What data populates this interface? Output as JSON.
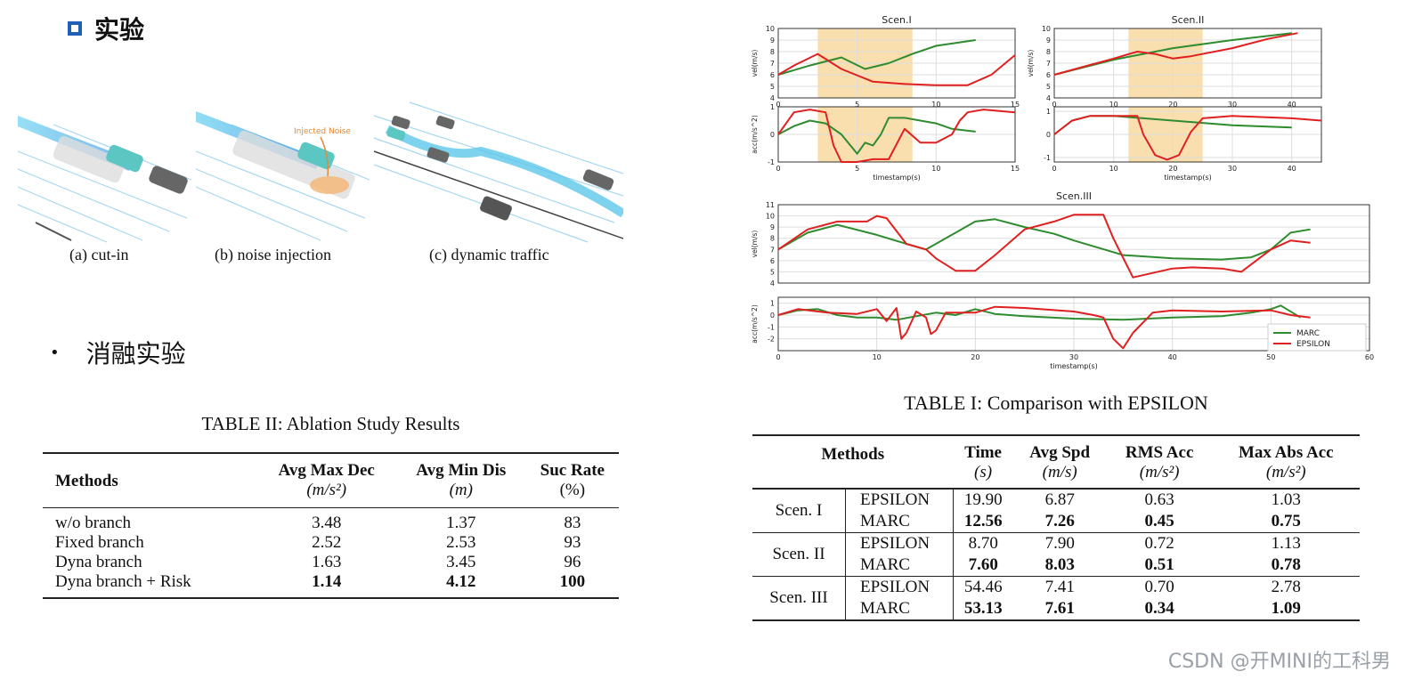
{
  "heading": "实验",
  "bullet": "消融实验",
  "figures": {
    "captions": [
      "(a) cut-in",
      "(b) noise injection",
      "(c) dynamic traffic"
    ],
    "annotation": "Injected Noise"
  },
  "table2": {
    "title": "TABLE II: Ablation Study Results",
    "headers": [
      {
        "label": "Methods",
        "unit": ""
      },
      {
        "label": "Avg Max Dec",
        "unit": "(m/s²)"
      },
      {
        "label": "Avg Min Dis",
        "unit": "(m)"
      },
      {
        "label": "Suc Rate",
        "unit": "(%)"
      }
    ],
    "rows": [
      {
        "method": "w/o branch",
        "dec": "3.48",
        "dis": "1.37",
        "suc": "83"
      },
      {
        "method": "Fixed branch",
        "dec": "2.52",
        "dis": "2.53",
        "suc": "93"
      },
      {
        "method": "Dyna branch",
        "dec": "1.63",
        "dis": "3.45",
        "suc": "96"
      },
      {
        "method": "Dyna branch + Risk",
        "dec": "1.14",
        "dis": "4.12",
        "suc": "100"
      }
    ]
  },
  "table1": {
    "title": "TABLE I: Comparison with EPSILON",
    "headers": [
      {
        "label": "Methods",
        "unit": ""
      },
      {
        "label": "Time",
        "unit": "(s)"
      },
      {
        "label": "Avg Spd",
        "unit": "(m/s)"
      },
      {
        "label": "RMS Acc",
        "unit": "(m/s²)"
      },
      {
        "label": "Max Abs Acc",
        "unit": "(m/s²)"
      }
    ],
    "groups": [
      {
        "scen": "Scen. I",
        "rows": [
          {
            "method": "EPSILON",
            "time": "19.90",
            "spd": "6.87",
            "rms": "0.63",
            "max": "1.03"
          },
          {
            "method": "MARC",
            "time": "12.56",
            "spd": "7.26",
            "rms": "0.45",
            "max": "0.75"
          }
        ]
      },
      {
        "scen": "Scen. II",
        "rows": [
          {
            "method": "EPSILON",
            "time": "8.70",
            "spd": "7.90",
            "rms": "0.72",
            "max": "1.13"
          },
          {
            "method": "MARC",
            "time": "7.60",
            "spd": "8.03",
            "rms": "0.51",
            "max": "0.78"
          }
        ]
      },
      {
        "scen": "Scen. III",
        "rows": [
          {
            "method": "EPSILON",
            "time": "54.46",
            "spd": "7.41",
            "rms": "0.70",
            "max": "2.78"
          },
          {
            "method": "MARC",
            "time": "53.13",
            "spd": "7.61",
            "rms": "0.34",
            "max": "1.09"
          }
        ]
      }
    ]
  },
  "chart_data": [
    {
      "type": "line",
      "title": "Scen.I",
      "xlabel": "",
      "ylabel": "vel(m/s)",
      "xlim": [
        0,
        15
      ],
      "ylim": [
        4,
        10
      ],
      "xticks": [
        "0",
        "5",
        "10",
        "15"
      ],
      "yticks": [
        "4",
        "5",
        "6",
        "7",
        "8",
        "9",
        "10"
      ],
      "shaded": [
        2.5,
        8.5
      ],
      "series": [
        {
          "name": "MARC",
          "color": "#2e8b2e",
          "x": [
            0,
            2,
            4,
            5.5,
            7,
            8.5,
            10,
            12.5
          ],
          "y": [
            6,
            6.8,
            7.5,
            6.5,
            7,
            7.8,
            8.5,
            9
          ]
        },
        {
          "name": "EPSILON",
          "color": "#e02020",
          "x": [
            0,
            1,
            2.5,
            4,
            6,
            8,
            10,
            12,
            13.5,
            15
          ],
          "y": [
            6,
            6.8,
            7.8,
            6.5,
            5.4,
            5.2,
            5.1,
            5.1,
            6,
            7.7
          ]
        }
      ]
    },
    {
      "type": "line",
      "title": "",
      "xlabel": "timestamp(s)",
      "ylabel": "acc(m/s^2)",
      "xlim": [
        0,
        15
      ],
      "ylim": [
        -1,
        1
      ],
      "xticks": [
        "0",
        "5",
        "10",
        "15"
      ],
      "yticks": [
        "-1",
        "0",
        "1"
      ],
      "shaded": [
        2.5,
        8.5
      ],
      "series": [
        {
          "name": "MARC",
          "color": "#2e8b2e",
          "x": [
            0,
            1,
            2,
            3,
            4,
            5,
            5.5,
            6,
            6.5,
            7,
            8,
            9,
            10,
            11,
            12.5
          ],
          "y": [
            0,
            0.3,
            0.5,
            0.4,
            0,
            -0.7,
            -0.3,
            -0.4,
            0,
            0.6,
            0.6,
            0.5,
            0.4,
            0.2,
            0.1
          ]
        },
        {
          "name": "EPSILON",
          "color": "#e02020",
          "x": [
            0,
            1,
            2,
            3,
            3.5,
            4,
            5,
            6,
            7,
            8,
            9,
            10,
            11,
            11.5,
            12,
            13,
            15
          ],
          "y": [
            0,
            0.8,
            0.9,
            0.8,
            -0.4,
            -1,
            -1,
            -0.9,
            -0.9,
            0.2,
            -0.3,
            -0.3,
            0,
            0.5,
            0.8,
            0.9,
            0.8
          ]
        }
      ]
    },
    {
      "type": "line",
      "title": "Scen.II",
      "xlabel": "",
      "ylabel": "vel(m/s)",
      "xlim": [
        0,
        45
      ],
      "ylim": [
        4,
        10
      ],
      "xticks": [
        "0",
        "10",
        "20",
        "30",
        "40"
      ],
      "yticks": [
        "4",
        "5",
        "6",
        "7",
        "8",
        "9",
        "10"
      ],
      "shaded": [
        12.5,
        25
      ],
      "series": [
        {
          "name": "MARC",
          "color": "#2e8b2e",
          "x": [
            0,
            10,
            20,
            30,
            40
          ],
          "y": [
            6,
            7.3,
            8.3,
            9,
            9.6
          ]
        },
        {
          "name": "EPSILON",
          "color": "#e02020",
          "x": [
            0,
            5,
            10,
            14,
            17,
            20,
            23,
            30,
            36,
            41
          ],
          "y": [
            6,
            6.7,
            7.4,
            8,
            7.8,
            7.4,
            7.6,
            8.3,
            9.1,
            9.6
          ]
        }
      ]
    },
    {
      "type": "line",
      "title": "",
      "xlabel": "timestamp(s)",
      "ylabel": "",
      "xlim": [
        0,
        45
      ],
      "ylim": [
        -1.2,
        1.2
      ],
      "xticks": [
        "0",
        "10",
        "20",
        "30",
        "40"
      ],
      "yticks": [
        "-1",
        "0",
        "1"
      ],
      "shaded": [
        12.5,
        25
      ],
      "series": [
        {
          "name": "MARC",
          "color": "#2e8b2e",
          "x": [
            0,
            3,
            6,
            10,
            15,
            20,
            25,
            30,
            35,
            40
          ],
          "y": [
            0,
            0.6,
            0.8,
            0.8,
            0.7,
            0.6,
            0.5,
            0.4,
            0.35,
            0.3
          ]
        },
        {
          "name": "EPSILON",
          "color": "#e02020",
          "x": [
            0,
            3,
            6,
            10,
            14,
            15,
            17,
            19,
            21,
            23,
            25,
            30,
            40,
            45
          ],
          "y": [
            0,
            0.6,
            0.8,
            0.8,
            0.8,
            0,
            -0.9,
            -1.1,
            -0.9,
            0.1,
            0.7,
            0.8,
            0.7,
            0.6
          ]
        }
      ]
    },
    {
      "type": "line",
      "title": "Scen.III",
      "xlabel": "",
      "ylabel": "vel(m/s)",
      "xlim": [
        0,
        60
      ],
      "ylim": [
        4,
        11
      ],
      "xticks": [],
      "yticks": [
        "4",
        "5",
        "6",
        "7",
        "8",
        "9",
        "10",
        "11"
      ],
      "shaded": null,
      "series": [
        {
          "name": "MARC",
          "color": "#2e8b2e",
          "x": [
            0,
            3,
            6,
            10,
            13,
            15,
            20,
            22,
            25,
            28,
            30,
            35,
            40,
            45,
            48,
            50,
            52,
            54
          ],
          "y": [
            7,
            8.5,
            9.2,
            8.3,
            7.5,
            7,
            9.5,
            9.7,
            9,
            8.4,
            7.8,
            6.5,
            6.2,
            6.1,
            6.3,
            7,
            8.5,
            8.8
          ]
        },
        {
          "name": "EPSILON",
          "color": "#e02020",
          "x": [
            0,
            3,
            6,
            9,
            10,
            11,
            13,
            15,
            16,
            18,
            20,
            22,
            25,
            28,
            30,
            33,
            34,
            36,
            40,
            42,
            45,
            47,
            50,
            52,
            54
          ],
          "y": [
            7,
            8.8,
            9.5,
            9.5,
            10,
            9.8,
            7.5,
            7,
            6.2,
            5.1,
            5.1,
            6.5,
            8.8,
            9.5,
            10.1,
            10.1,
            8,
            4.5,
            5.3,
            5.4,
            5.3,
            5,
            7,
            7.8,
            7.6
          ]
        }
      ]
    },
    {
      "type": "line",
      "title": "",
      "xlabel": "timestamp(s)",
      "ylabel": "acc(m/s^2)",
      "xlim": [
        0,
        60
      ],
      "ylim": [
        -3,
        1.5
      ],
      "xticks": [
        "0",
        "10",
        "20",
        "30",
        "40",
        "50",
        "60"
      ],
      "yticks": [
        "-2",
        "-1",
        "0",
        "1"
      ],
      "shaded": null,
      "series": [
        {
          "name": "MARC",
          "color": "#2e8b2e",
          "x": [
            0,
            2,
            4,
            6,
            8,
            10,
            12,
            14,
            16,
            18,
            20,
            22,
            25,
            30,
            35,
            40,
            45,
            48,
            50,
            51,
            53
          ],
          "y": [
            0,
            0.4,
            0.5,
            0,
            -0.2,
            -0.2,
            -0.4,
            -0.1,
            0.2,
            0,
            0.5,
            0.1,
            -0.1,
            -0.3,
            -0.4,
            -0.2,
            -0.1,
            0.2,
            0.5,
            0.8,
            -0.2
          ]
        },
        {
          "name": "EPSILON",
          "color": "#e02020",
          "x": [
            0,
            2,
            5,
            8,
            10,
            11,
            12,
            12.5,
            13,
            14,
            15,
            15.5,
            16,
            17,
            20,
            22,
            25,
            30,
            32,
            33,
            34,
            35,
            36,
            38,
            40,
            45,
            50,
            52,
            54
          ],
          "y": [
            0,
            0.5,
            0.2,
            0.1,
            0.5,
            -0.5,
            0.6,
            -2,
            -1.5,
            0.3,
            -0.2,
            -1.6,
            -1.3,
            0.2,
            0.2,
            0.7,
            0.6,
            0.3,
            0,
            -0.2,
            -2,
            -2.8,
            -1.5,
            0.2,
            0.4,
            0.3,
            0.4,
            0,
            -0.2
          ]
        }
      ]
    }
  ],
  "legend": {
    "items": [
      {
        "name": "MARC",
        "color": "#2e8b2e"
      },
      {
        "name": "EPSILON",
        "color": "#e02020"
      }
    ]
  },
  "watermark": "CSDN @开MINI的工科男"
}
